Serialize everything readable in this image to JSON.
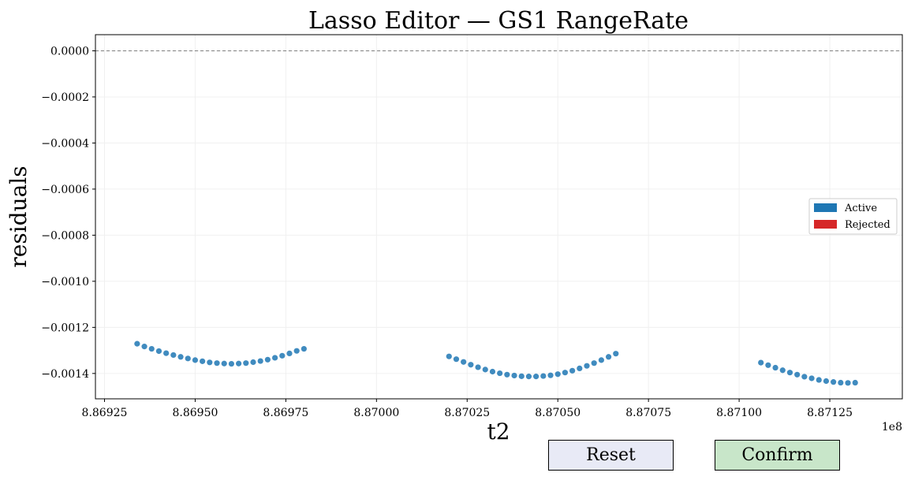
{
  "chart_data": {
    "type": "scatter",
    "title": "Lasso Editor — GS1 RangeRate",
    "xlabel": "t2",
    "ylabel": "residuals",
    "x_offset_label": "1e8",
    "xlim": [
      886922.5,
      887145
    ],
    "ylim": [
      -0.00151,
      7e-05
    ],
    "x_ticks": [
      886925,
      886950,
      886975,
      887000,
      887025,
      887050,
      887075,
      887100,
      887125
    ],
    "x_tick_labels": [
      "8.86925",
      "8.86950",
      "8.86975",
      "8.87000",
      "8.87025",
      "8.87050",
      "8.87075",
      "8.87100",
      "8.87125"
    ],
    "y_ticks": [
      0,
      -0.0002,
      -0.0004,
      -0.0006,
      -0.0008,
      -0.001,
      -0.0012,
      -0.0014
    ],
    "y_tick_labels": [
      "0.0000",
      "−0.0002",
      "−0.0004",
      "−0.0006",
      "−0.0008",
      "−0.0010",
      "−0.0012",
      "−0.0014"
    ],
    "reference_line_y": 0,
    "grid": true,
    "legend_position": "center-right",
    "series": [
      {
        "name": "Active",
        "color": "#1f77b4",
        "points": [
          [
            886934,
            -0.001271
          ],
          [
            886936,
            -0.001283
          ],
          [
            886938,
            -0.001293
          ],
          [
            886940,
            -0.001303
          ],
          [
            886942,
            -0.001312
          ],
          [
            886944,
            -0.00132
          ],
          [
            886946,
            -0.001328
          ],
          [
            886948,
            -0.001335
          ],
          [
            886950,
            -0.001342
          ],
          [
            886952,
            -0.001347
          ],
          [
            886954,
            -0.001352
          ],
          [
            886956,
            -0.001355
          ],
          [
            886958,
            -0.001357
          ],
          [
            886960,
            -0.001358
          ],
          [
            886962,
            -0.001357
          ],
          [
            886964,
            -0.001355
          ],
          [
            886966,
            -0.001351
          ],
          [
            886968,
            -0.001346
          ],
          [
            886970,
            -0.00134
          ],
          [
            886972,
            -0.001332
          ],
          [
            886974,
            -0.001323
          ],
          [
            886976,
            -0.001313
          ],
          [
            886978,
            -0.001302
          ],
          [
            886980,
            -0.001293
          ],
          [
            887020,
            -0.001326
          ],
          [
            887022,
            -0.001338
          ],
          [
            887024,
            -0.00135
          ],
          [
            887026,
            -0.001362
          ],
          [
            887028,
            -0.001373
          ],
          [
            887030,
            -0.001383
          ],
          [
            887032,
            -0.001392
          ],
          [
            887034,
            -0.001399
          ],
          [
            887036,
            -0.001405
          ],
          [
            887038,
            -0.001409
          ],
          [
            887040,
            -0.001412
          ],
          [
            887042,
            -0.001413
          ],
          [
            887044,
            -0.001413
          ],
          [
            887046,
            -0.001411
          ],
          [
            887048,
            -0.001408
          ],
          [
            887050,
            -0.001403
          ],
          [
            887052,
            -0.001396
          ],
          [
            887054,
            -0.001388
          ],
          [
            887056,
            -0.001378
          ],
          [
            887058,
            -0.001367
          ],
          [
            887060,
            -0.001355
          ],
          [
            887062,
            -0.001342
          ],
          [
            887064,
            -0.001328
          ],
          [
            887066,
            -0.001314
          ],
          [
            887106,
            -0.001353
          ],
          [
            887108,
            -0.001364
          ],
          [
            887110,
            -0.001375
          ],
          [
            887112,
            -0.001386
          ],
          [
            887114,
            -0.001396
          ],
          [
            887116,
            -0.001405
          ],
          [
            887118,
            -0.001414
          ],
          [
            887120,
            -0.001421
          ],
          [
            887122,
            -0.001428
          ],
          [
            887124,
            -0.001433
          ],
          [
            887126,
            -0.001437
          ],
          [
            887128,
            -0.00144
          ],
          [
            887130,
            -0.001441
          ],
          [
            887132,
            -0.00144
          ]
        ]
      },
      {
        "name": "Rejected",
        "color": "#d62728",
        "points": []
      }
    ]
  },
  "buttons": {
    "reset_label": "Reset",
    "confirm_label": "Confirm"
  }
}
